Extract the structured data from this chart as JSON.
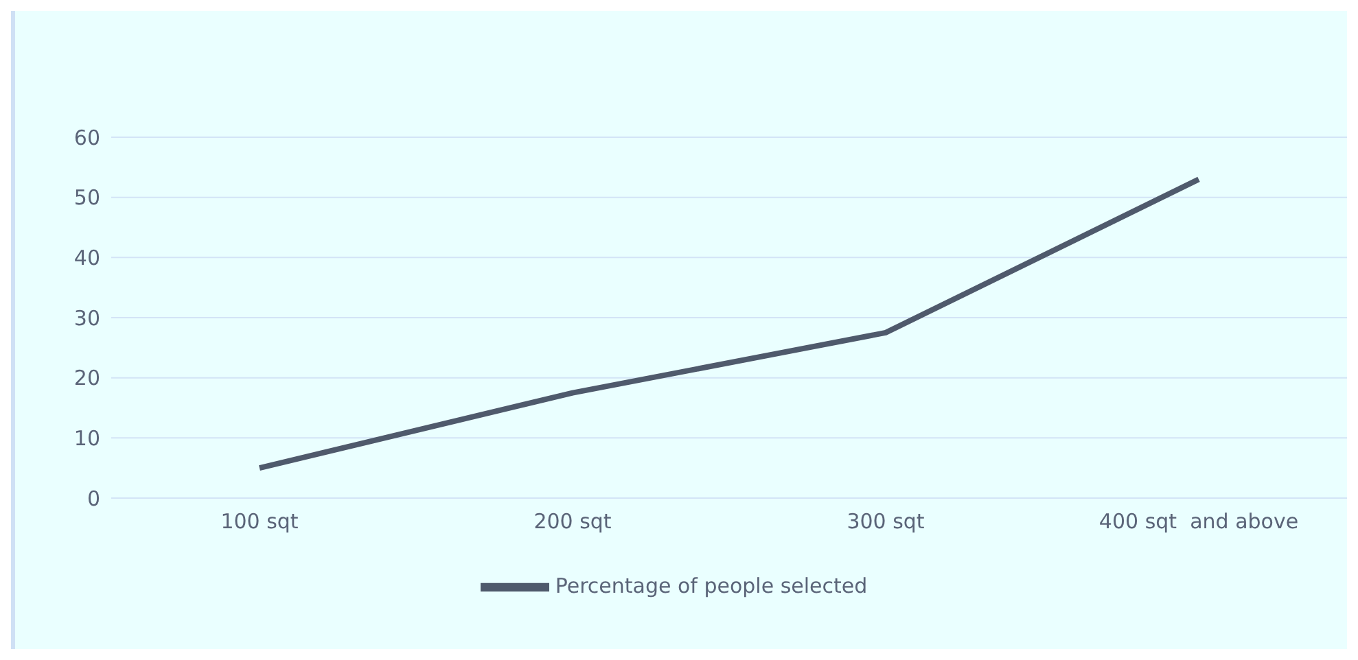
{
  "chart_data": {
    "type": "line",
    "categories": [
      "100 sqt",
      "200 sqt",
      "300 sqt",
      "400 sqt  and above"
    ],
    "series": [
      {
        "name": "Percentage of people selected",
        "color": "#4f5a6c",
        "values": [
          5,
          17.5,
          27.5,
          53
        ]
      }
    ],
    "ylim": [
      0,
      60
    ],
    "yticks": [
      0,
      10,
      20,
      30,
      40,
      50,
      60
    ],
    "grid": "y",
    "legend": "bottom",
    "marker": "none",
    "line_style": "solid"
  }
}
